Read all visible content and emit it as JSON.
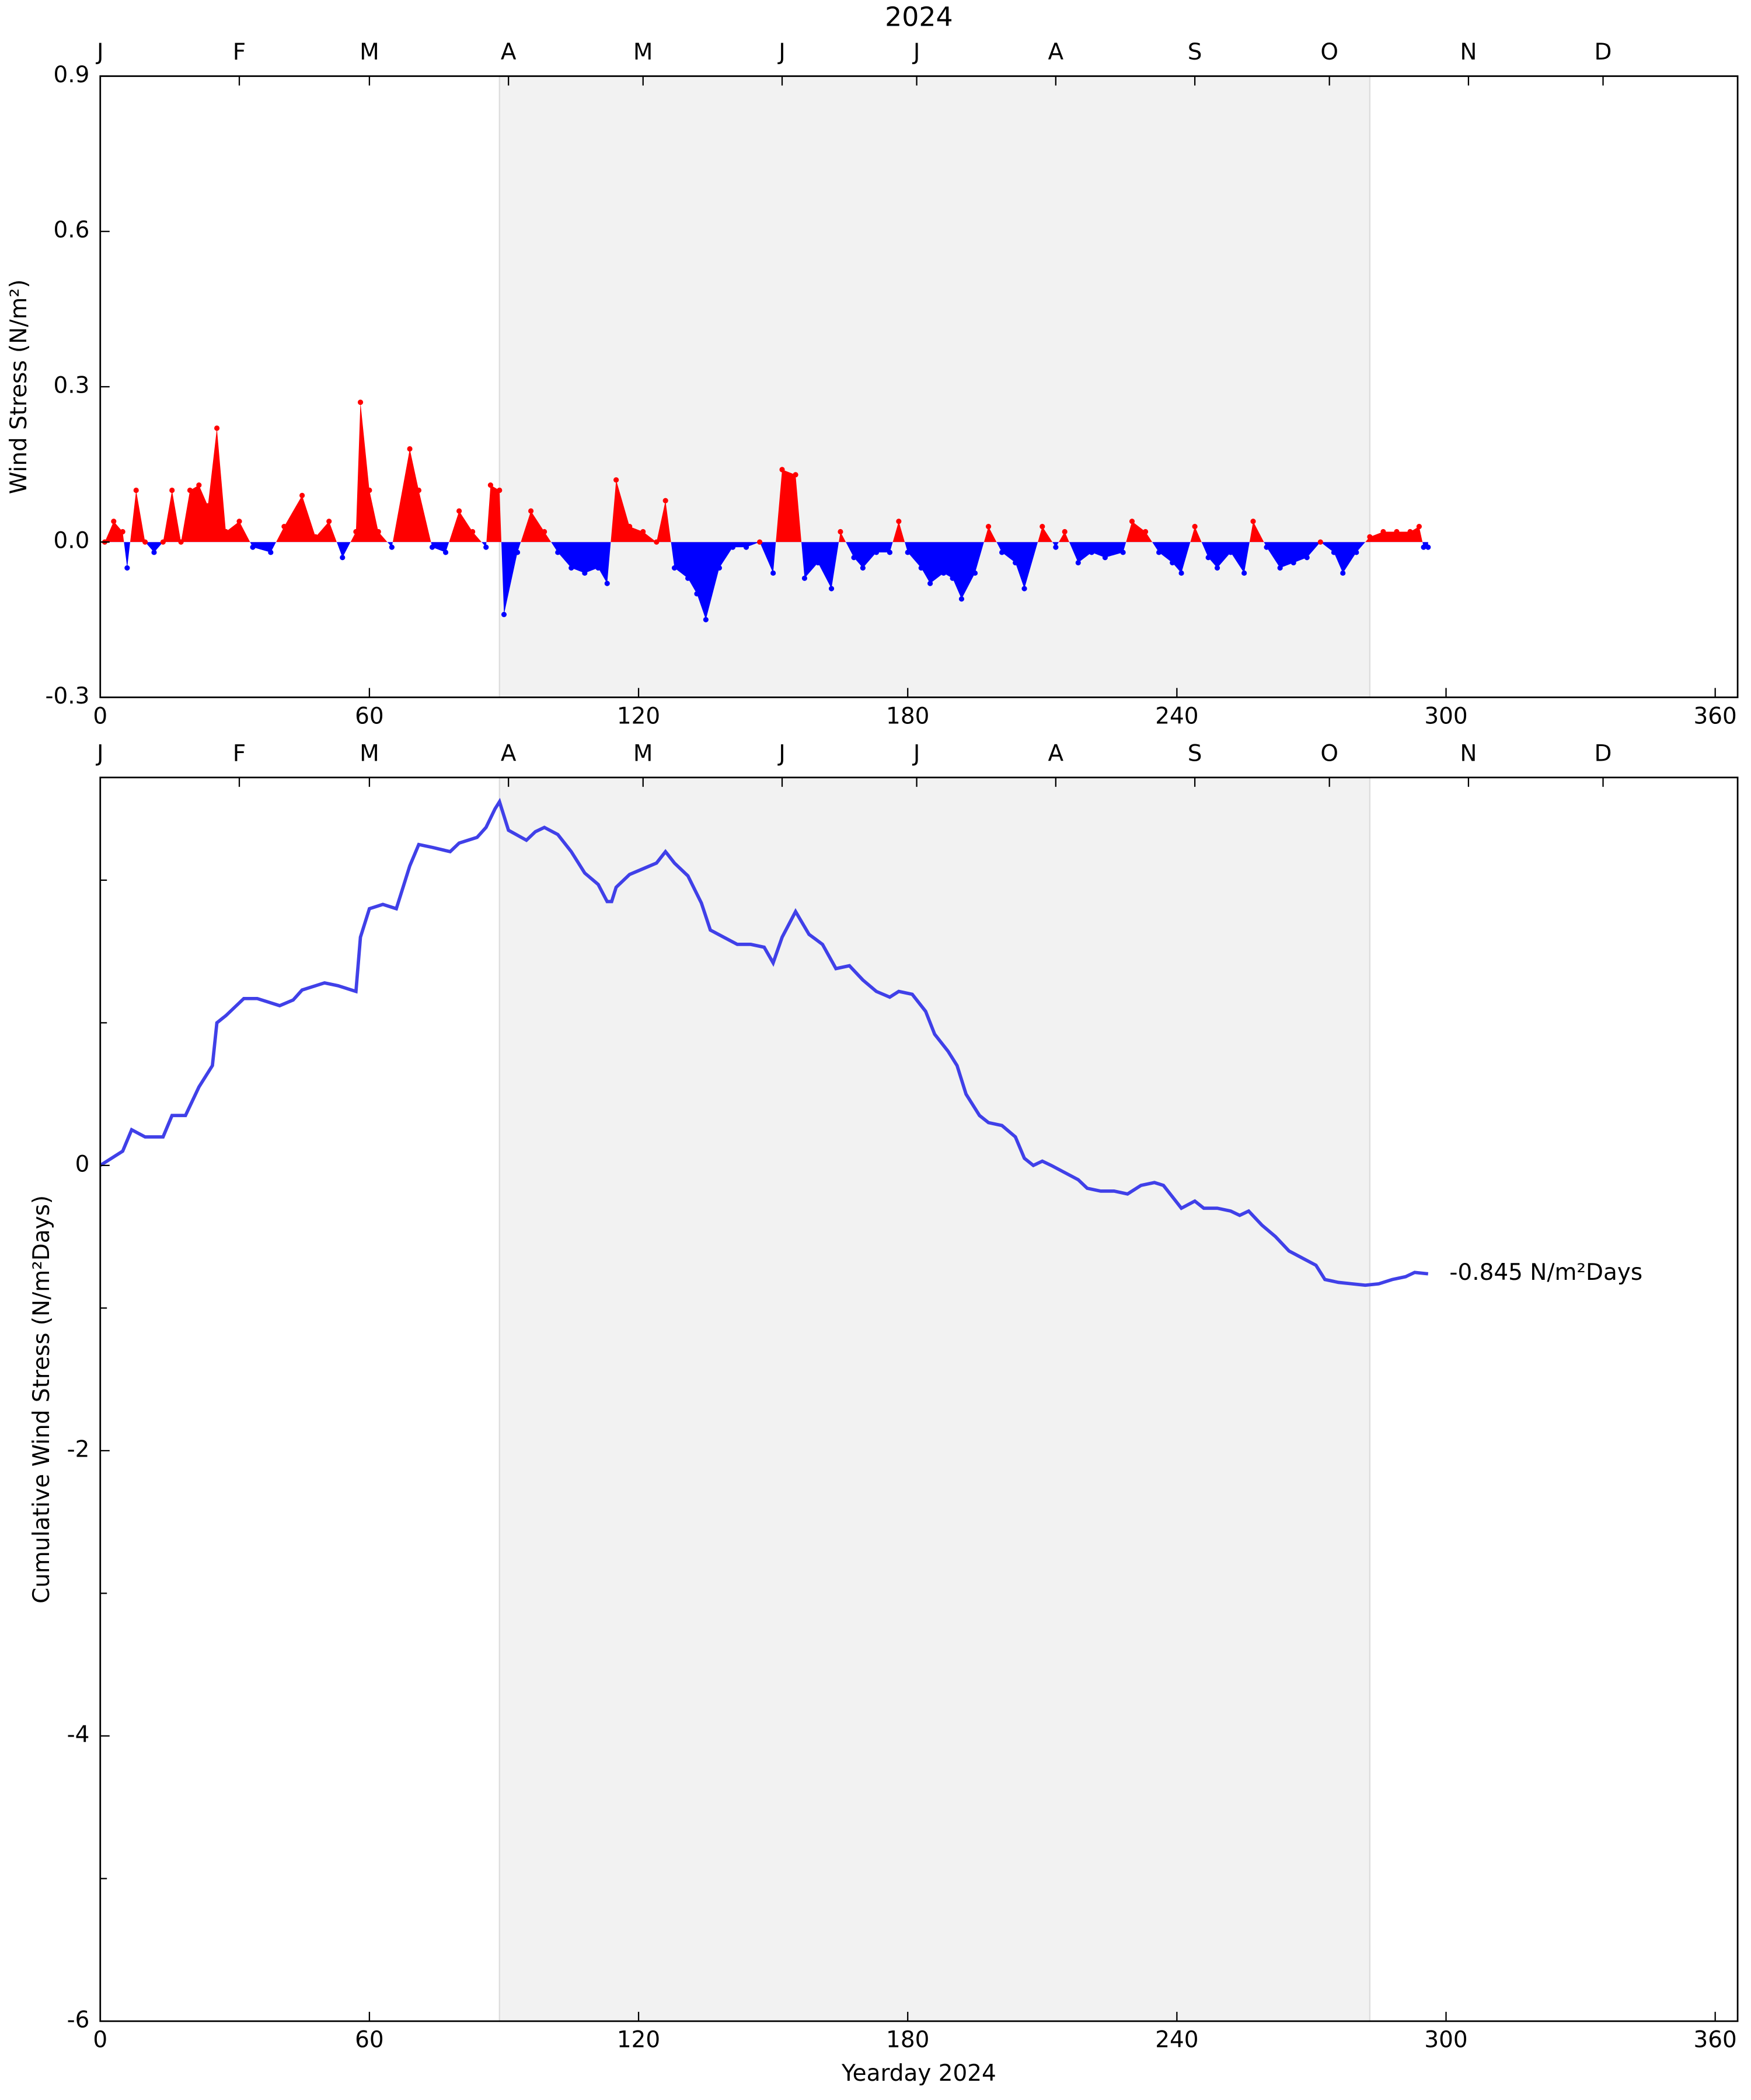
{
  "chart_data": [
    {
      "type": "area",
      "title": "2024",
      "ylabel": "Wind Stress (N/m²)",
      "positive_color": "#ff0000",
      "negative_color": "#0000ff",
      "x": [
        1,
        3,
        5,
        6,
        8,
        10,
        12,
        14,
        16,
        18,
        20,
        22,
        24,
        26,
        28,
        31,
        34,
        38,
        41,
        45,
        48,
        51,
        54,
        57,
        58,
        60,
        62,
        65,
        69,
        71,
        74,
        77,
        80,
        83,
        86,
        87,
        89,
        90,
        93,
        96,
        99,
        102,
        105,
        108,
        111,
        113,
        115,
        118,
        121,
        124,
        126,
        128,
        131,
        133,
        135,
        138,
        141,
        144,
        147,
        150,
        152,
        155,
        157,
        160,
        163,
        165,
        168,
        170,
        173,
        176,
        178,
        180,
        183,
        185,
        188,
        190,
        192,
        195,
        198,
        201,
        204,
        206,
        210,
        213,
        215,
        218,
        221,
        224,
        228,
        230,
        233,
        236,
        239,
        241,
        244,
        247,
        249,
        252,
        255,
        257,
        260,
        263,
        266,
        269,
        272,
        275,
        277,
        280,
        283,
        286,
        289,
        292,
        294,
        295,
        296
      ],
      "values": [
        0.0,
        0.04,
        0.02,
        -0.05,
        0.1,
        0.0,
        -0.02,
        0.0,
        0.1,
        0.0,
        0.1,
        0.11,
        0.07,
        0.22,
        0.02,
        0.04,
        -0.01,
        -0.02,
        0.03,
        0.09,
        0.01,
        0.04,
        -0.03,
        0.02,
        0.27,
        0.1,
        0.02,
        -0.01,
        0.18,
        0.1,
        -0.01,
        -0.02,
        0.06,
        0.02,
        -0.01,
        0.11,
        0.1,
        -0.14,
        -0.02,
        0.06,
        0.02,
        -0.02,
        -0.05,
        -0.06,
        -0.05,
        -0.08,
        0.12,
        0.03,
        0.02,
        0.0,
        0.08,
        -0.05,
        -0.07,
        -0.1,
        -0.15,
        -0.05,
        -0.01,
        -0.01,
        0.0,
        -0.06,
        0.14,
        0.13,
        -0.07,
        -0.04,
        -0.09,
        0.02,
        -0.03,
        -0.05,
        -0.02,
        -0.02,
        0.04,
        -0.02,
        -0.05,
        -0.08,
        -0.06,
        -0.07,
        -0.11,
        -0.06,
        0.03,
        -0.02,
        -0.04,
        -0.09,
        0.03,
        -0.01,
        0.02,
        -0.04,
        -0.02,
        -0.03,
        -0.02,
        0.04,
        0.02,
        -0.02,
        -0.04,
        -0.06,
        0.03,
        -0.03,
        -0.05,
        -0.02,
        -0.06,
        0.04,
        -0.01,
        -0.05,
        -0.04,
        -0.03,
        0.0,
        -0.02,
        -0.06,
        -0.02,
        0.01,
        0.02,
        0.02,
        0.02,
        0.03,
        -0.01,
        -0.01
      ],
      "xlim": [
        0,
        365
      ],
      "xticks": [
        0,
        60,
        120,
        180,
        240,
        300,
        360
      ],
      "top_ticks": [
        {
          "value": 0,
          "label": "J"
        },
        {
          "value": 31,
          "label": "F"
        },
        {
          "value": 60,
          "label": "M"
        },
        {
          "value": 91,
          "label": "A"
        },
        {
          "value": 121,
          "label": "M"
        },
        {
          "value": 152,
          "label": "J"
        },
        {
          "value": 182,
          "label": "J"
        },
        {
          "value": 213,
          "label": "A"
        },
        {
          "value": 244,
          "label": "S"
        },
        {
          "value": 274,
          "label": "O"
        },
        {
          "value": 305,
          "label": "N"
        },
        {
          "value": 335,
          "label": "D"
        }
      ],
      "ylim": [
        -0.3,
        0.9
      ],
      "yticks": [
        -0.3,
        {
          "value": 0,
          "label": "0.0"
        },
        0.3,
        0.6,
        0.9
      ],
      "shade": [
        89,
        283
      ]
    },
    {
      "type": "line",
      "xlabel": "Yearday 2024",
      "ylabel": "Cumulative Wind Stress (N/m²Days)",
      "color": "#4040e8",
      "annotation": "-0.845 N/m²Days",
      "x": [
        0,
        5,
        7,
        10,
        14,
        16,
        19,
        22,
        25,
        26,
        28,
        32,
        35,
        40,
        43,
        45,
        50,
        53,
        57,
        58,
        60,
        63,
        66,
        69,
        71,
        74,
        78,
        80,
        84,
        86,
        88,
        89,
        91,
        95,
        97,
        99,
        102,
        105,
        108,
        111,
        113,
        114,
        115,
        118,
        121,
        124,
        126,
        128,
        131,
        134,
        136,
        139,
        142,
        145,
        148,
        150,
        152,
        155,
        158,
        161,
        164,
        167,
        170,
        173,
        176,
        178,
        181,
        184,
        186,
        189,
        191,
        193,
        196,
        198,
        201,
        204,
        206,
        208,
        210,
        212,
        215,
        218,
        220,
        223,
        226,
        229,
        232,
        235,
        237,
        239,
        241,
        244,
        246,
        249,
        252,
        254,
        256,
        259,
        262,
        265,
        268,
        271,
        273,
        276,
        279,
        282,
        285,
        288,
        291,
        293,
        296
      ],
      "values": [
        0,
        0.1,
        0.25,
        0.2,
        0.2,
        0.35,
        0.35,
        0.55,
        0.7,
        1.0,
        1.05,
        1.17,
        1.17,
        1.12,
        1.16,
        1.23,
        1.28,
        1.26,
        1.22,
        1.6,
        1.8,
        1.83,
        1.8,
        2.1,
        2.25,
        2.23,
        2.2,
        2.26,
        2.3,
        2.37,
        2.5,
        2.55,
        2.35,
        2.28,
        2.34,
        2.37,
        2.32,
        2.2,
        2.05,
        1.97,
        1.85,
        1.85,
        1.95,
        2.04,
        2.08,
        2.12,
        2.2,
        2.12,
        2.03,
        1.84,
        1.65,
        1.6,
        1.55,
        1.55,
        1.53,
        1.42,
        1.6,
        1.78,
        1.62,
        1.55,
        1.38,
        1.4,
        1.3,
        1.22,
        1.18,
        1.22,
        1.2,
        1.08,
        0.92,
        0.8,
        0.7,
        0.5,
        0.35,
        0.3,
        0.28,
        0.2,
        0.05,
        0.0,
        0.03,
        0.0,
        -0.05,
        -0.1,
        -0.16,
        -0.18,
        -0.18,
        -0.2,
        -0.14,
        -0.12,
        -0.14,
        -0.22,
        -0.3,
        -0.25,
        -0.3,
        -0.3,
        -0.32,
        -0.35,
        -0.32,
        -0.42,
        -0.5,
        -0.6,
        -0.65,
        -0.7,
        -0.8,
        -0.82,
        -0.83,
        -0.84,
        -0.83,
        -0.8,
        -0.78,
        -0.75,
        -0.76
      ],
      "xlim": [
        0,
        365
      ],
      "xticks": [
        0,
        60,
        120,
        180,
        240,
        300,
        360
      ],
      "top_ticks": [
        {
          "value": 0,
          "label": "J"
        },
        {
          "value": 31,
          "label": "F"
        },
        {
          "value": 60,
          "label": "M"
        },
        {
          "value": 91,
          "label": "A"
        },
        {
          "value": 121,
          "label": "M"
        },
        {
          "value": 152,
          "label": "J"
        },
        {
          "value": 182,
          "label": "J"
        },
        {
          "value": 213,
          "label": "A"
        },
        {
          "value": 244,
          "label": "S"
        },
        {
          "value": 274,
          "label": "O"
        },
        {
          "value": 305,
          "label": "N"
        },
        {
          "value": 335,
          "label": "D"
        }
      ],
      "ylim": [
        -6,
        2.72
      ],
      "yticks": [
        -6,
        -4,
        -2,
        0
      ],
      "minor_yticks": [
        -5,
        -3,
        -1,
        1,
        2
      ],
      "shade": [
        89,
        283
      ]
    }
  ]
}
